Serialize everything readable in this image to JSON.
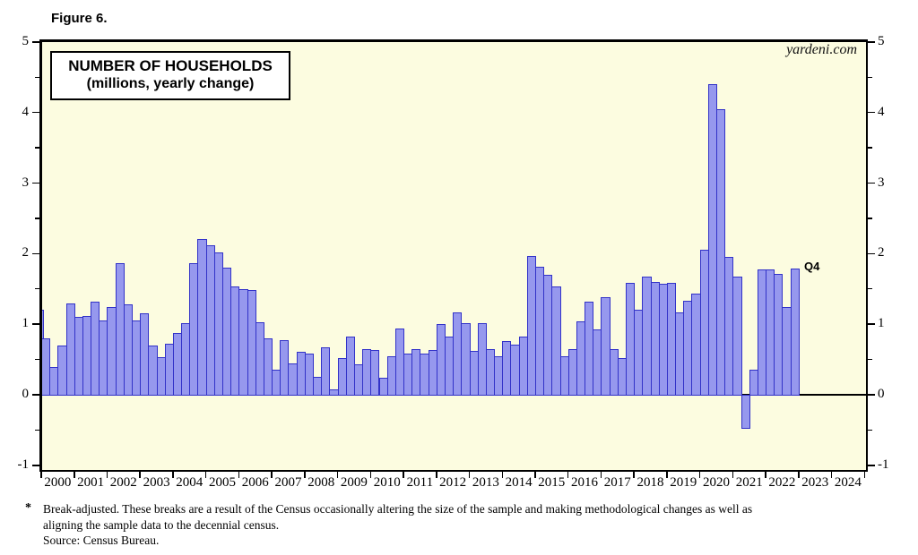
{
  "figure_label": "Figure 6.",
  "title_box": {
    "line1": "NUMBER OF HOUSEHOLDS",
    "line2": "(millions, yearly change)"
  },
  "watermark": "yardeni.com",
  "annotation_last_bar": "Q4",
  "footnote": {
    "marker": "*",
    "line1": "Break-adjusted. These breaks are a result of the Census occasionally altering the size of the sample and making methodological changes as well as",
    "line2": "aligning the sample data to the decennial census.",
    "source": "Source: Census Bureau."
  },
  "colors": {
    "bar_fill": "#9698EE",
    "bar_border": "#3232C8",
    "plot_bg": "#FCFCE0",
    "axis": "#000000"
  },
  "chart_data": {
    "type": "bar",
    "title": "NUMBER OF HOUSEHOLDS",
    "subtitle": "(millions, yearly change)",
    "ylabel": "millions, yearly change",
    "frequency": "quarterly",
    "x_start": "2000Q1",
    "x_end": "2022Q4",
    "ylim": [
      -1,
      5
    ],
    "yticks": [
      5,
      4,
      3,
      2,
      1,
      0,
      -1
    ],
    "grid": false,
    "partial_bar_before_2000Q1": 1.2,
    "x_year_labels": [
      "2000",
      "2001",
      "2002",
      "2003",
      "2004",
      "2005",
      "2006",
      "2007",
      "2008",
      "2009",
      "2010",
      "2011",
      "2012",
      "2013",
      "2014",
      "2015",
      "2016",
      "2017",
      "2018",
      "2019",
      "2020",
      "2021",
      "2022",
      "2023",
      "2024"
    ],
    "series": [
      {
        "year": "2000",
        "values": [
          0.8,
          0.4,
          0.7,
          1.3
        ]
      },
      {
        "year": "2001",
        "values": [
          1.1,
          1.12,
          1.32,
          1.05
        ]
      },
      {
        "year": "2002",
        "values": [
          1.25,
          1.87,
          1.28,
          1.05
        ]
      },
      {
        "year": "2003",
        "values": [
          1.15,
          0.7,
          0.53,
          0.73
        ]
      },
      {
        "year": "2004",
        "values": [
          0.88,
          1.01,
          1.86,
          2.21
        ]
      },
      {
        "year": "2005",
        "values": [
          2.12,
          2.02,
          1.8,
          1.53
        ]
      },
      {
        "year": "2006",
        "values": [
          1.5,
          1.49,
          1.03,
          0.8
        ]
      },
      {
        "year": "2007",
        "values": [
          0.35,
          0.78,
          0.45,
          0.61
        ]
      },
      {
        "year": "2008",
        "values": [
          0.58,
          0.25,
          0.67,
          0.08
        ]
      },
      {
        "year": "2009",
        "values": [
          0.52,
          0.83,
          0.43,
          0.65
        ]
      },
      {
        "year": "2010",
        "values": [
          0.63,
          0.24,
          0.54,
          0.94
        ]
      },
      {
        "year": "2011",
        "values": [
          0.58,
          0.65,
          0.59,
          0.64
        ]
      },
      {
        "year": "2012",
        "values": [
          1.0,
          0.82,
          1.17,
          1.01
        ]
      },
      {
        "year": "2013",
        "values": [
          0.62,
          1.02,
          0.65,
          0.55
        ]
      },
      {
        "year": "2014",
        "values": [
          0.76,
          0.71,
          0.82,
          1.97
        ]
      },
      {
        "year": "2015",
        "values": [
          1.81,
          1.7,
          1.54,
          0.55
        ]
      },
      {
        "year": "2016",
        "values": [
          0.65,
          1.04,
          1.32,
          0.93
        ]
      },
      {
        "year": "2017",
        "values": [
          1.38,
          0.65,
          0.52,
          1.58
        ]
      },
      {
        "year": "2018",
        "values": [
          1.21,
          1.68,
          1.6,
          1.57
        ]
      },
      {
        "year": "2019",
        "values": [
          1.58,
          1.17,
          1.33,
          1.44
        ]
      },
      {
        "year": "2020",
        "values": [
          2.05,
          4.4,
          4.05,
          1.95
        ]
      },
      {
        "year": "2021",
        "values": [
          1.68,
          -0.47,
          0.36,
          1.78
        ]
      },
      {
        "year": "2022",
        "values": [
          1.78,
          1.71,
          1.24,
          1.79
        ]
      }
    ]
  }
}
